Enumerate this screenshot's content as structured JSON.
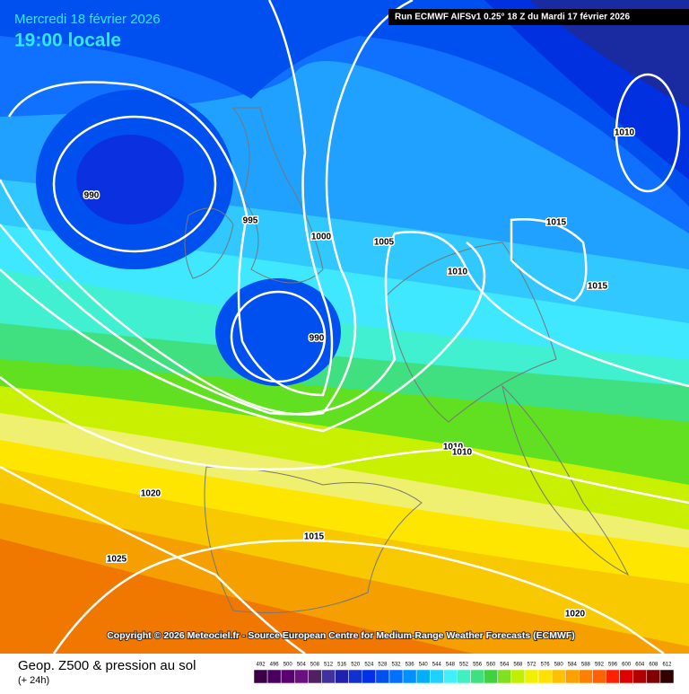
{
  "header": {
    "date": "Mercredi 18 février 2026",
    "time": "19:00 locale",
    "run": "Run ECMWF AIFSv1 0.25° 18 Z du Mardi 17 février 2026"
  },
  "isobar_labels": [
    "990",
    "995",
    "1000",
    "1005",
    "1010",
    "1015",
    "1010",
    "1015",
    "990",
    "1020",
    "1025",
    "1015",
    "1010",
    "1010",
    "1020"
  ],
  "copyright": "Copyright © 2026 Meteociel.fr - Source European Centre for Medium-Range Weather Forecasts (ECMWF)",
  "footer": {
    "title": "Geop. Z500 & pression au sol",
    "lead": "(+ 24h)"
  },
  "scale": {
    "labels": [
      "492",
      "496",
      "500",
      "504",
      "508",
      "512",
      "516",
      "520",
      "524",
      "528",
      "532",
      "536",
      "540",
      "544",
      "548",
      "552",
      "556",
      "560",
      "564",
      "568",
      "572",
      "576",
      "580",
      "584",
      "588",
      "592",
      "596",
      "600",
      "604",
      "608",
      "612"
    ],
    "colors": [
      "#3c0046",
      "#4a0060",
      "#5a0070",
      "#6a1080",
      "#502060",
      "#4030a0",
      "#2020b0",
      "#1030d0",
      "#0030e8",
      "#0050f0",
      "#0070ff",
      "#0090ff",
      "#00b0ff",
      "#20d0ff",
      "#40f0ff",
      "#40f0c0",
      "#40e080",
      "#40d040",
      "#80e020",
      "#c0f000",
      "#f0f000",
      "#ffe000",
      "#ffc000",
      "#ffa000",
      "#ff8000",
      "#ff6000",
      "#ff2000",
      "#e00000",
      "#b00000",
      "#800000",
      "#300000"
    ]
  }
}
